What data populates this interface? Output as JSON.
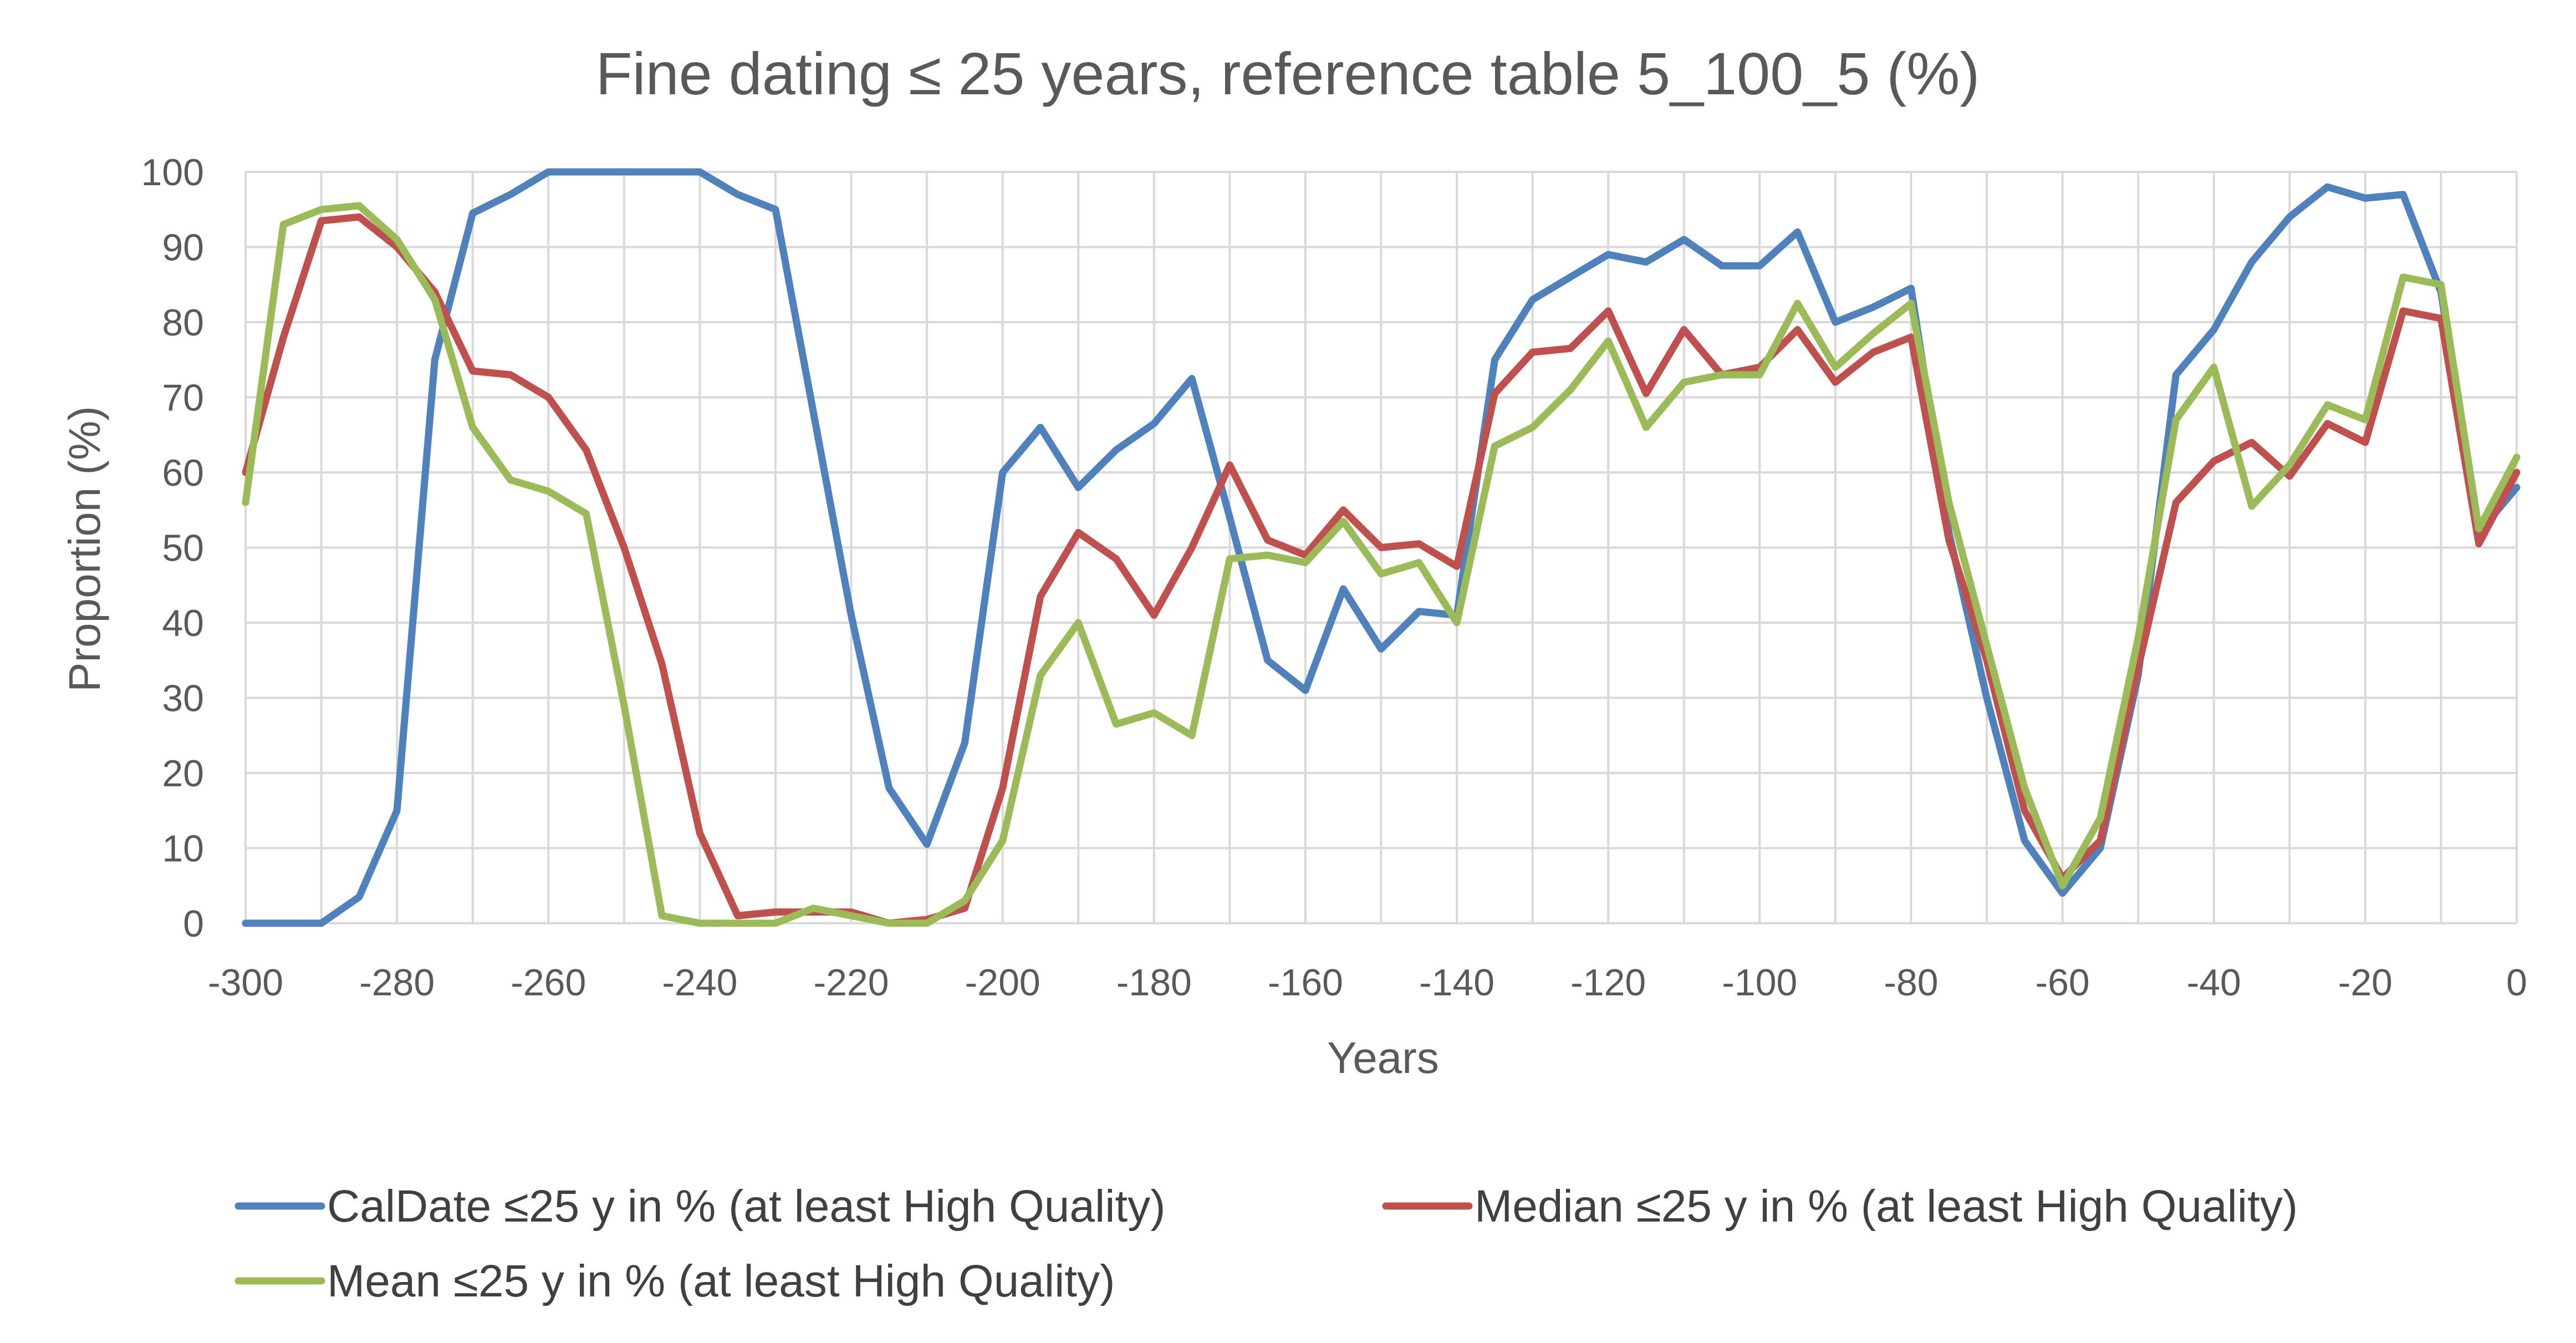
{
  "chart_data": {
    "type": "line",
    "title": "Fine dating ≤ 25 years, reference table 5_100_5 (%)",
    "xlabel": "Years",
    "ylabel": "Proportion (%)",
    "xlim": [
      -300,
      0
    ],
    "ylim": [
      0,
      100
    ],
    "x_ticks": [
      -300,
      -280,
      -260,
      -240,
      -220,
      -200,
      -180,
      -160,
      -140,
      -120,
      -100,
      -80,
      -60,
      -40,
      -20,
      0
    ],
    "y_ticks": [
      0,
      10,
      20,
      30,
      40,
      50,
      60,
      70,
      80,
      90,
      100
    ],
    "grid": true,
    "legend_position": "bottom",
    "x": [
      -300,
      -295,
      -290,
      -285,
      -280,
      -275,
      -270,
      -265,
      -260,
      -255,
      -250,
      -245,
      -240,
      -235,
      -230,
      -225,
      -220,
      -215,
      -210,
      -205,
      -200,
      -195,
      -190,
      -185,
      -180,
      -175,
      -170,
      -165,
      -160,
      -155,
      -150,
      -145,
      -140,
      -135,
      -130,
      -125,
      -120,
      -115,
      -110,
      -105,
      -100,
      -95,
      -90,
      -85,
      -80,
      -75,
      -70,
      -65,
      -60,
      -55,
      -50,
      -45,
      -40,
      -35,
      -30,
      -25,
      -20,
      -15,
      -10,
      -5,
      0
    ],
    "series": [
      {
        "name": "CalDate ≤25 y in % (at least High Quality)",
        "color": "#4f81bd",
        "values": [
          0,
          0,
          0,
          3.5,
          15,
          75,
          94.5,
          97,
          100,
          100,
          100,
          100,
          100,
          97,
          95,
          68,
          41,
          18,
          10.5,
          24,
          60,
          66,
          58,
          63,
          66.5,
          72.5,
          54,
          35,
          31,
          44.5,
          36.5,
          41.5,
          41,
          75,
          83,
          86,
          89,
          88,
          91,
          87.5,
          87.5,
          92,
          80,
          82,
          84.5,
          52,
          30,
          11,
          4,
          10,
          33,
          73,
          79,
          88,
          94,
          98,
          96.5,
          97,
          84,
          52,
          58
        ]
      },
      {
        "name": "Median ≤25 y in %  (at least High Quality)",
        "color": "#c0504d",
        "values": [
          60,
          78,
          93.5,
          94,
          90,
          84,
          73.5,
          73,
          70,
          63,
          50,
          34.5,
          12,
          1,
          1.5,
          1.5,
          1.5,
          0,
          0.5,
          2,
          18,
          43.5,
          52,
          48.5,
          41,
          50,
          61,
          51,
          49,
          55,
          50,
          50.5,
          47.5,
          70.5,
          76,
          76.5,
          81.5,
          70.5,
          79,
          73,
          74,
          79,
          72,
          76,
          78,
          51,
          35,
          15,
          6,
          11,
          34,
          56,
          61.5,
          64,
          59.5,
          66.5,
          64,
          81.5,
          80.5,
          50.5,
          60
        ]
      },
      {
        "name": "Mean ≤25 y in %  (at least High Quality)",
        "color": "#9bbb59",
        "values": [
          56,
          93,
          95,
          95.5,
          91,
          83,
          66,
          59,
          57.5,
          54.5,
          29,
          1,
          0,
          0,
          0,
          2,
          1,
          0,
          0,
          3,
          11,
          33,
          40,
          26.5,
          28,
          25,
          48.5,
          49,
          48,
          53.5,
          46.5,
          48,
          40,
          63.5,
          66,
          71,
          77.5,
          66,
          72,
          73,
          73,
          82.5,
          74,
          78.5,
          82.5,
          56,
          37,
          18,
          5,
          14,
          38,
          67,
          74,
          55.5,
          61,
          69,
          67,
          86,
          85,
          52.5,
          62
        ]
      }
    ]
  }
}
